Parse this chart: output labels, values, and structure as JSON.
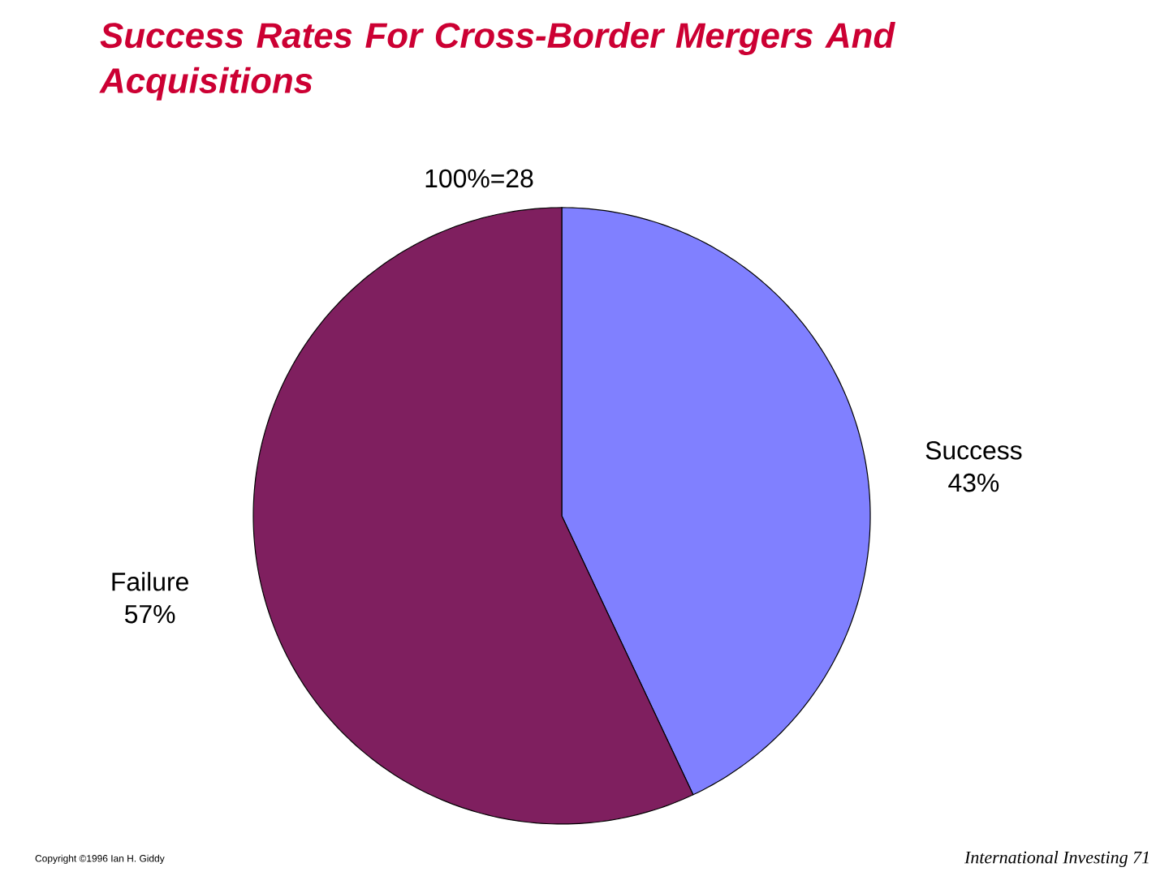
{
  "chart_data": {
    "type": "pie",
    "title": "Success Rates For Cross-Border Mergers And Acquisitions",
    "subtitle": "100%=28",
    "categories": [
      "Success",
      "Failure"
    ],
    "values": [
      43,
      57
    ],
    "colors": [
      "#8080ff",
      "#7f1f5f"
    ],
    "value_labels": [
      "43%",
      "57%"
    ],
    "annotations": [
      "Copyright ©1996 Ian H. Giddy",
      "International Investing 71"
    ]
  }
}
